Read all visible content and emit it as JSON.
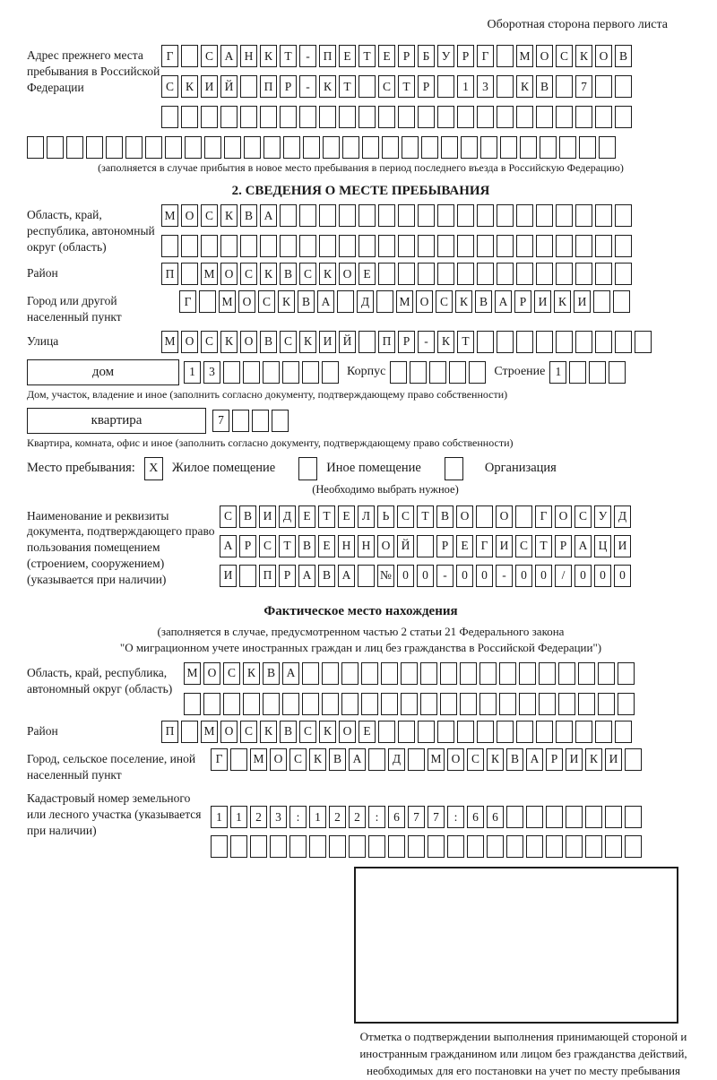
{
  "page": {
    "header_note": "Оборотная сторона первого листа"
  },
  "prev_address": {
    "label": "Адрес прежнего места пребывания в Российской Федерации",
    "rows": [
      {
        "text": "Г САНКТ-ПЕТЕРБУРГ МОСКОВ",
        "len": 24
      },
      {
        "text": "СКИЙ ПР-КТ СТР 13 КВ 7",
        "len": 24
      },
      {
        "text": "",
        "len": 24
      },
      {
        "text": "",
        "len": 30
      }
    ],
    "caption": "(заполняется в случае прибытия в новое место пребывания в период последнего въезда в Российскую Федерацию)"
  },
  "section2": {
    "title": "2. СВЕДЕНИЯ О МЕСТЕ ПРЕБЫВАНИЯ",
    "oblast": {
      "label": "Область, край, республика, автономный округ (область)",
      "rows": [
        {
          "text": "МОСКВА",
          "len": 24
        },
        {
          "text": "",
          "len": 24
        }
      ]
    },
    "raion": {
      "label": "Район",
      "row": {
        "text": "П МОСКВСКОЕ",
        "len": 24
      }
    },
    "gorod": {
      "label": "Город или другой населенный пункт",
      "row": {
        "text": "Г МОСКВА Д МОСКВАРИКИ",
        "len": 23
      }
    },
    "ulitsa": {
      "label": "Улица",
      "row": {
        "text": "МОСКОВСКИЙ ПР-КТ",
        "len": 25
      }
    },
    "dom": {
      "box_label": "дом",
      "cells": {
        "text": "13",
        "len": 8
      },
      "korpus_label": "Корпус",
      "korpus_cells": {
        "text": "",
        "len": 5
      },
      "stroenie_label": "Строение",
      "stroenie_cells": {
        "text": "1",
        "len": 4
      }
    },
    "dom_caption": "Дом, участок, владение и иное (заполнить согласно документу, подтверждающему право собственности)",
    "kvartira": {
      "box_label": "квартира",
      "cells": {
        "text": "7",
        "len": 4
      }
    },
    "kvartira_caption": "Квартира, комната, офис и иное (заполнить согласно документу, подтверждающему право собственности)",
    "mesto": {
      "label": "Место пребывания:",
      "options": [
        {
          "label": "Жилое помещение",
          "checked": "X"
        },
        {
          "label": "Иное помещение",
          "checked": ""
        },
        {
          "label": "Организация",
          "checked": ""
        }
      ],
      "caption": "(Необходимо выбрать нужное)"
    },
    "document": {
      "label": "Наименование и реквизиты документа, подтверждающего право пользования помещением (строением, сооружением) (указывается при наличии)",
      "rows": [
        {
          "text": "СВИДЕТЕЛЬСТВО О ГОСУД",
          "len": 21
        },
        {
          "text": "АРСТВЕННОЙ РЕГИСТРАЦИ",
          "len": 21
        },
        {
          "text": "И ПРАВА №00-00-00/000",
          "len": 21
        }
      ]
    }
  },
  "fact_location": {
    "title": "Фактическое место нахождения",
    "subtitle1": "(заполняется в случае, предусмотренном частью 2 статьи 21 Федерального закона",
    "subtitle2": "\"О миграционном учете иностранных граждан и лиц без гражданства в Российской Федерации\")",
    "oblast": {
      "label": "Область, край, республика, автономный округ (область)",
      "rows": [
        {
          "text": "МОСКВА",
          "len": 23
        },
        {
          "text": "",
          "len": 23
        }
      ]
    },
    "raion": {
      "label": "Район",
      "row": {
        "text": "П МОСКВСКОЕ",
        "len": 24
      }
    },
    "gorod": {
      "label": "Город, сельское поселение, иной населенный пункт",
      "row": {
        "text": "Г МОСКВА Д МОСКВАРИКИ",
        "len": 22
      }
    },
    "kadastr": {
      "label": "Кадастровый номер земельного или лесного участка (указывается при наличии)",
      "rows": [
        {
          "text": "1123:122:677:66",
          "len": 22
        },
        {
          "text": "",
          "len": 22
        }
      ]
    }
  },
  "stamp": {
    "caption": "Отметка о подтверждении выполнения принимающей стороной и иностранным гражданином или лицом без гражданства действий, необходимых для его постановки на учет по месту пребывания"
  }
}
